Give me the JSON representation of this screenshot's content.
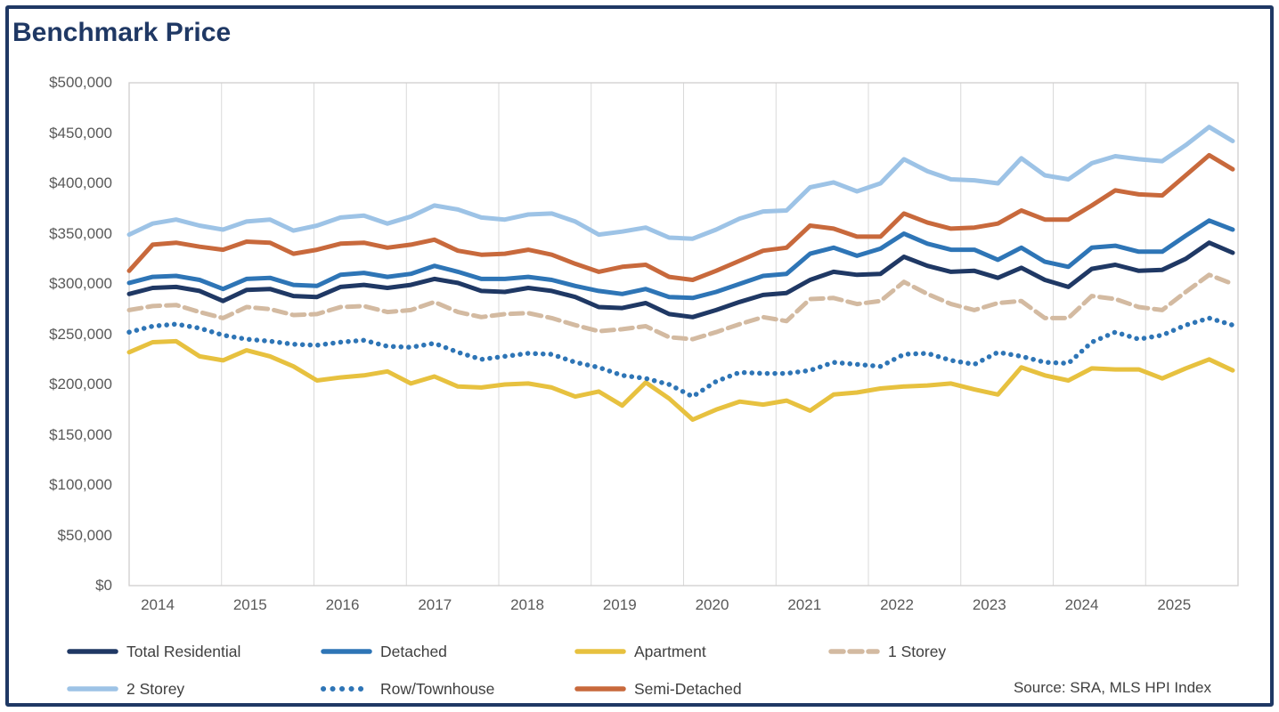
{
  "title": "Benchmark Price",
  "source": "Source: SRA, MLS HPI Index",
  "colors": {
    "frame_border": "#1F3864",
    "title_text": "#1F3864",
    "axis_text": "#595959",
    "legend_text": "#3F3F3F",
    "gridline": "#D9D9D9",
    "plot_border": "#D0CECE"
  },
  "chart_data": {
    "type": "line",
    "title": "Benchmark Price",
    "xlabel": "",
    "ylabel": "",
    "x_labels": [
      "2014",
      "2015",
      "2016",
      "2017",
      "2018",
      "2019",
      "2020",
      "2021",
      "2022",
      "2023",
      "2024",
      "2025"
    ],
    "y_tick_labels": [
      "$500,000",
      "$450,000",
      "$400,000",
      "$350,000",
      "$300,000",
      "$250,000",
      "$200,000",
      "$150,000",
      "$100,000",
      "$50,000",
      "$0"
    ],
    "ylim": [
      0,
      500000
    ],
    "y_step": 50000,
    "grid": "vertical-only",
    "legend_position": "bottom",
    "sampling": "quarterly points per year, 2014-Q1 through 2025-Q4",
    "series": [
      {
        "name": "Total Residential",
        "color": "#1F3864",
        "style": "solid",
        "values": [
          290000,
          296000,
          297000,
          293000,
          283000,
          294000,
          295000,
          288000,
          287000,
          297000,
          299000,
          296000,
          299000,
          305000,
          301000,
          293000,
          292000,
          296000,
          293000,
          287000,
          277000,
          276000,
          281000,
          270000,
          267000,
          274000,
          282000,
          289000,
          291000,
          304000,
          312000,
          309000,
          310000,
          327000,
          318000,
          312000,
          313000,
          306000,
          316000,
          304000,
          297000,
          315000,
          319000,
          313000,
          314000,
          325000,
          341000,
          331000
        ]
      },
      {
        "name": "Detached",
        "color": "#2E75B6",
        "style": "solid",
        "values": [
          301000,
          307000,
          308000,
          304000,
          295000,
          305000,
          306000,
          299000,
          298000,
          309000,
          311000,
          307000,
          310000,
          318000,
          312000,
          305000,
          305000,
          307000,
          304000,
          298000,
          293000,
          290000,
          295000,
          287000,
          286000,
          292000,
          300000,
          308000,
          310000,
          330000,
          336000,
          328000,
          335000,
          350000,
          340000,
          334000,
          334000,
          324000,
          336000,
          322000,
          317000,
          336000,
          338000,
          332000,
          332000,
          348000,
          363000,
          354000
        ]
      },
      {
        "name": "Apartment",
        "color": "#E7C13F",
        "style": "solid",
        "values": [
          232000,
          242000,
          243000,
          228000,
          224000,
          234000,
          228000,
          218000,
          204000,
          207000,
          209000,
          213000,
          201000,
          208000,
          198000,
          197000,
          200000,
          201000,
          197000,
          188000,
          193000,
          179000,
          202000,
          186000,
          165000,
          175000,
          183000,
          180000,
          184000,
          174000,
          190000,
          192000,
          196000,
          198000,
          199000,
          201000,
          195000,
          190000,
          217000,
          209000,
          204000,
          216000,
          215000,
          215000,
          206000,
          216000,
          225000,
          214000
        ]
      },
      {
        "name": "1 Storey",
        "color": "#D3BAA1",
        "style": "dashed",
        "values": [
          274000,
          278000,
          279000,
          272000,
          266000,
          277000,
          275000,
          269000,
          270000,
          277000,
          278000,
          272000,
          274000,
          282000,
          272000,
          267000,
          270000,
          271000,
          266000,
          259000,
          253000,
          255000,
          258000,
          247000,
          245000,
          252000,
          260000,
          267000,
          263000,
          285000,
          286000,
          280000,
          283000,
          302000,
          290000,
          280000,
          274000,
          281000,
          283000,
          266000,
          266000,
          288000,
          285000,
          277000,
          274000,
          292000,
          309000,
          300000
        ]
      },
      {
        "name": "2 Storey",
        "color": "#9DC3E6",
        "style": "solid",
        "values": [
          349000,
          360000,
          364000,
          358000,
          354000,
          362000,
          364000,
          353000,
          358000,
          366000,
          368000,
          360000,
          367000,
          378000,
          374000,
          366000,
          364000,
          369000,
          370000,
          362000,
          349000,
          352000,
          356000,
          346000,
          345000,
          354000,
          365000,
          372000,
          373000,
          396000,
          401000,
          392000,
          400000,
          424000,
          412000,
          404000,
          403000,
          400000,
          425000,
          408000,
          404000,
          420000,
          427000,
          424000,
          422000,
          438000,
          456000,
          442000
        ]
      },
      {
        "name": "Row/Townhouse",
        "color": "#2E75B6",
        "style": "dotted",
        "values": [
          252000,
          258000,
          260000,
          256000,
          249000,
          245000,
          243000,
          240000,
          239000,
          242000,
          244000,
          238000,
          237000,
          241000,
          232000,
          225000,
          228000,
          231000,
          230000,
          222000,
          217000,
          209000,
          206000,
          200000,
          188000,
          203000,
          212000,
          211000,
          211000,
          214000,
          222000,
          220000,
          218000,
          230000,
          231000,
          224000,
          220000,
          232000,
          228000,
          222000,
          221000,
          242000,
          252000,
          245000,
          249000,
          259000,
          266000,
          259000
        ]
      },
      {
        "name": "Semi-Detached",
        "color": "#C8693C",
        "style": "solid",
        "values": [
          313000,
          339000,
          341000,
          337000,
          334000,
          342000,
          341000,
          330000,
          334000,
          340000,
          341000,
          336000,
          339000,
          344000,
          333000,
          329000,
          330000,
          334000,
          329000,
          320000,
          312000,
          317000,
          319000,
          307000,
          304000,
          313000,
          323000,
          333000,
          336000,
          358000,
          355000,
          347000,
          347000,
          370000,
          361000,
          355000,
          356000,
          360000,
          373000,
          364000,
          364000,
          378000,
          393000,
          389000,
          388000,
          408000,
          428000,
          414000
        ]
      }
    ]
  },
  "legend": {
    "rows": [
      {
        "items": [
          {
            "series_index": 0
          },
          {
            "series_index": 1
          },
          {
            "series_index": 2
          },
          {
            "series_index": 3
          }
        ]
      },
      {
        "items": [
          {
            "series_index": 4
          },
          {
            "series_index": 5
          },
          {
            "series_index": 6
          }
        ]
      }
    ]
  }
}
